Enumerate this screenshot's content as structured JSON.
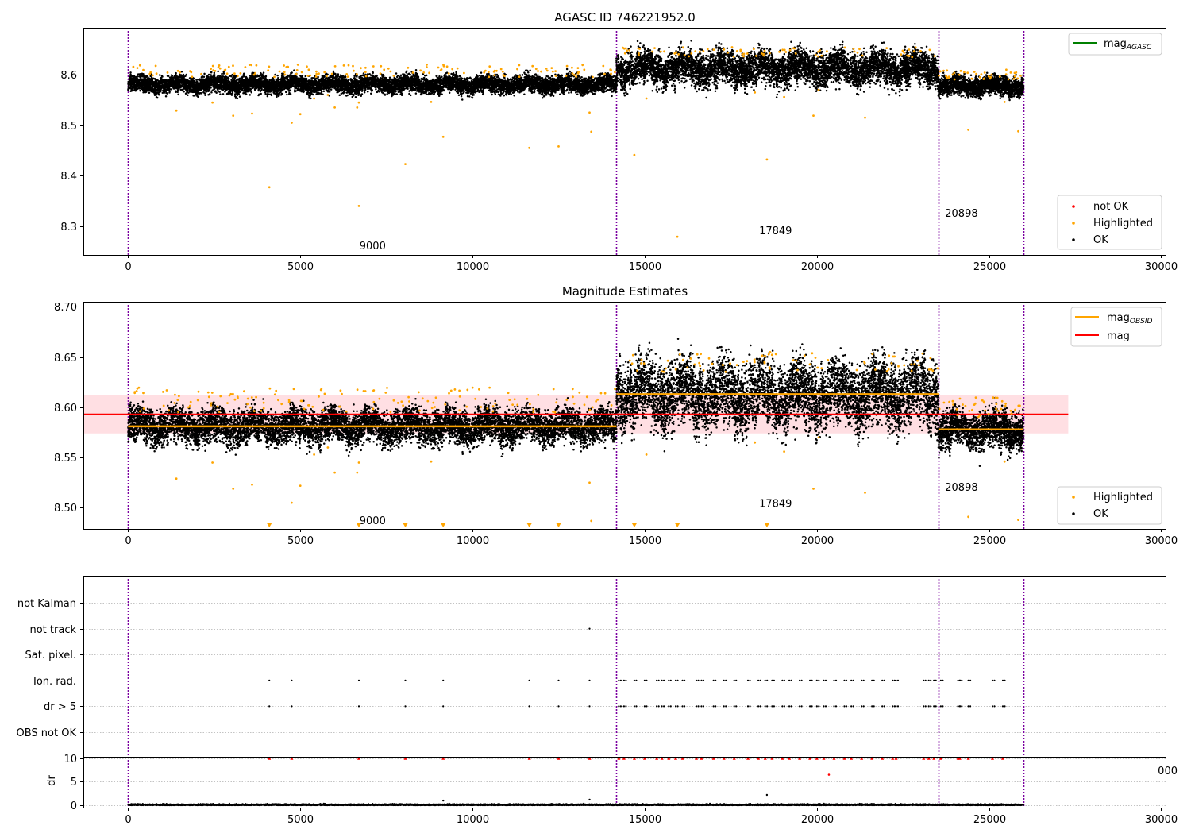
{
  "chart_data": [
    {
      "type": "scatter",
      "title": "AGASC ID 746221952.0",
      "xlim": [
        -1300,
        30150
      ],
      "ylim": [
        8.243,
        8.693
      ],
      "x_ticks": [
        0,
        5000,
        10000,
        15000,
        20000,
        25000,
        30000
      ],
      "y_ticks": [
        8.3,
        8.4,
        8.5,
        8.6
      ],
      "grid": false,
      "legend_line": {
        "label": "mag",
        "subscript": "AGASC",
        "color": "#008000",
        "placement": "top-right"
      },
      "legend_points": {
        "placement": "lower-right",
        "entries": [
          {
            "label": "not OK",
            "color": "#ff0000"
          },
          {
            "label": "Highlighted",
            "color": "#ffa500"
          },
          {
            "label": "OK",
            "color": "#000000"
          }
        ]
      },
      "obs_boundaries": [
        0,
        14180,
        23530,
        26000
      ],
      "obs_labels": [
        {
          "text": "9000",
          "x": 7100,
          "y": 8.26
        },
        {
          "text": "17849",
          "x": 18800,
          "y": 8.29
        },
        {
          "text": "20898",
          "x": 24200,
          "y": 8.325
        }
      ],
      "ok_bands": [
        {
          "x": [
            0,
            14180
          ],
          "center": 8.581,
          "spread": 0.018
        },
        {
          "x": [
            14180,
            23530
          ],
          "center": 8.613,
          "spread": 0.035
        },
        {
          "x": [
            23530,
            26000
          ],
          "center": 8.578,
          "spread": 0.02
        }
      ],
      "highlighted_points": [
        [
          4100,
          8.377
        ],
        [
          6700,
          8.34
        ],
        [
          4750,
          8.505
        ],
        [
          5000,
          8.522
        ],
        [
          5400,
          8.553
        ],
        [
          3600,
          8.523
        ],
        [
          3050,
          8.519
        ],
        [
          2450,
          8.545
        ],
        [
          1400,
          8.529
        ],
        [
          6000,
          8.535
        ],
        [
          6650,
          8.535
        ],
        [
          6700,
          8.545
        ],
        [
          8050,
          8.423
        ],
        [
          9150,
          8.477
        ],
        [
          11650,
          8.455
        ],
        [
          12500,
          8.458
        ],
        [
          13400,
          8.525
        ],
        [
          13450,
          8.487
        ],
        [
          14700,
          8.441
        ],
        [
          15050,
          8.553
        ],
        [
          15950,
          8.279
        ],
        [
          18550,
          8.432
        ],
        [
          18200,
          8.565
        ],
        [
          19050,
          8.556
        ],
        [
          19900,
          8.519
        ],
        [
          20050,
          8.57
        ],
        [
          21400,
          8.515
        ],
        [
          24400,
          8.491
        ],
        [
          25450,
          8.546
        ],
        [
          25850,
          8.488
        ],
        [
          5800,
          8.56
        ],
        [
          8800,
          8.546
        ]
      ],
      "highlighted_top": {
        "count": 260,
        "y_ranges": [
          [
            8.595,
            8.62
          ],
          [
            8.635,
            8.655
          ],
          [
            8.59,
            8.61
          ]
        ]
      }
    },
    {
      "type": "scatter",
      "title": "Magnitude Estimates",
      "xlim": [
        -1300,
        30150
      ],
      "ylim": [
        8.479,
        8.705
      ],
      "x_ticks": [
        0,
        5000,
        10000,
        15000,
        20000,
        25000,
        30000
      ],
      "y_ticks": [
        8.5,
        8.55,
        8.6,
        8.65,
        8.7
      ],
      "y_tick_labels": [
        "8.50",
        "8.55",
        "8.60",
        "8.65",
        "8.70"
      ],
      "grid": false,
      "legend_lines": {
        "placement": "top-right",
        "entries": [
          {
            "label": "mag",
            "subscript": "OBSID",
            "color": "#ffa500"
          },
          {
            "label": "mag",
            "subscript": "",
            "color": "#ff0000"
          }
        ]
      },
      "legend_points": {
        "placement": "lower-right",
        "entries": [
          {
            "label": "Highlighted",
            "color": "#ffa500"
          },
          {
            "label": "OK",
            "color": "#000000"
          }
        ]
      },
      "mag": 8.593,
      "mag_band": [
        8.574,
        8.612
      ],
      "mag_extent": [
        -1300,
        27300
      ],
      "mag_obsid": [
        {
          "x": [
            0,
            14180
          ],
          "value": 8.581
        },
        {
          "x": [
            14180,
            23530
          ],
          "value": 8.613
        },
        {
          "x": [
            23530,
            26000
          ],
          "value": 8.578
        }
      ],
      "obs_boundaries": [
        0,
        14180,
        23530,
        26000
      ],
      "obs_labels": [
        {
          "text": "9000",
          "x": 7100,
          "y": 8.487
        },
        {
          "text": "17849",
          "x": 18800,
          "y": 8.504
        },
        {
          "text": "20898",
          "x": 24200,
          "y": 8.52
        }
      ],
      "ok_bands": [
        {
          "x": [
            0,
            14180
          ],
          "center": 8.581,
          "spread": 0.018
        },
        {
          "x": [
            14180,
            23530
          ],
          "center": 8.613,
          "spread": 0.035
        },
        {
          "x": [
            23530,
            26000
          ],
          "center": 8.578,
          "spread": 0.02
        }
      ],
      "highlighted_points": [
        [
          4750,
          8.505
        ],
        [
          5000,
          8.522
        ],
        [
          5400,
          8.553
        ],
        [
          3600,
          8.523
        ],
        [
          3050,
          8.519
        ],
        [
          2450,
          8.545
        ],
        [
          1400,
          8.529
        ],
        [
          6000,
          8.535
        ],
        [
          6650,
          8.535
        ],
        [
          6700,
          8.545
        ],
        [
          13400,
          8.525
        ],
        [
          13450,
          8.487
        ],
        [
          15050,
          8.553
        ],
        [
          18200,
          8.565
        ],
        [
          19050,
          8.556
        ],
        [
          19900,
          8.519
        ],
        [
          20050,
          8.57
        ],
        [
          21400,
          8.515
        ],
        [
          24400,
          8.491
        ],
        [
          25450,
          8.546
        ],
        [
          25850,
          8.488
        ],
        [
          5800,
          8.56
        ],
        [
          8800,
          8.546
        ]
      ],
      "out_of_range_markers_x": [
        4100,
        6700,
        8050,
        9150,
        11650,
        12500,
        14700,
        15950,
        18550
      ],
      "highlighted_top": {
        "count": 260,
        "y_ranges": [
          [
            8.595,
            8.62
          ],
          [
            8.635,
            8.655
          ],
          [
            8.59,
            8.61
          ]
        ]
      }
    },
    {
      "type": "scatter",
      "title": "",
      "xlim": [
        -1300,
        30150
      ],
      "flag_labels": [
        "not Kalman",
        "not track",
        "Sat. pixel.",
        "Ion. rad.",
        "dr > 5",
        "OBS not OK"
      ],
      "flags": {
        "not track": [
          13400
        ],
        "Ion. rad.": [
          4100,
          4750,
          6700,
          8050,
          9150,
          11650,
          12500,
          13400,
          14250,
          14400,
          14700,
          15000,
          15350,
          15500,
          15700,
          15900,
          16100,
          16500,
          16650,
          17000,
          17300,
          17600,
          18000,
          18300,
          18500,
          18700,
          19000,
          19200,
          19500,
          19800,
          20000,
          20200,
          20500,
          20800,
          21000,
          21300,
          21600,
          21900,
          22200,
          22300,
          23100,
          23250,
          23400,
          23600,
          24100,
          24150,
          24400,
          25100,
          25400
        ],
        "dr > 5": [
          4100,
          4750,
          6700,
          8050,
          9150,
          11650,
          12500,
          13400,
          14250,
          14400,
          14700,
          15000,
          15350,
          15500,
          15700,
          15900,
          16100,
          16500,
          16650,
          17000,
          17300,
          17600,
          18000,
          18300,
          18500,
          18700,
          19000,
          19200,
          19500,
          19800,
          20000,
          20200,
          20500,
          20800,
          21000,
          21300,
          21600,
          21900,
          22200,
          22300,
          23100,
          23250,
          23400,
          23600,
          24100,
          24150,
          24400,
          25100,
          25400
        ]
      },
      "obs_boundaries": [
        0,
        14180,
        23530,
        26000
      ],
      "obs_boundary_color": "#7b00a0"
    },
    {
      "type": "scatter",
      "title": "",
      "xlim": [
        -1300,
        30150
      ],
      "ylim": [
        -0.5,
        10.3
      ],
      "ylabel": "dr",
      "x_ticks": [
        0,
        5000,
        10000,
        15000,
        20000,
        25000,
        30000
      ],
      "y_ticks": [
        0,
        5,
        10
      ],
      "clipped_at": 10,
      "clipped_points_x": [
        4100,
        4750,
        6700,
        8050,
        9150,
        11650,
        12500,
        13400,
        14250,
        14400,
        14700,
        15000,
        15350,
        15500,
        15700,
        15900,
        16100,
        16500,
        16650,
        17000,
        17300,
        17600,
        18000,
        18300,
        18500,
        18700,
        19000,
        19200,
        19500,
        19800,
        20000,
        20200,
        20500,
        20800,
        21000,
        21300,
        21600,
        21900,
        22200,
        22300,
        23100,
        23250,
        23400,
        23600,
        24100,
        24150,
        24400,
        25100,
        25400
      ],
      "red_points": [
        [
          20350,
          6.5
        ]
      ],
      "outliers": [
        [
          18550,
          2.2
        ],
        [
          13400,
          1.2
        ],
        [
          9150,
          1.0
        ]
      ]
    }
  ],
  "overlap_fragment": "000"
}
